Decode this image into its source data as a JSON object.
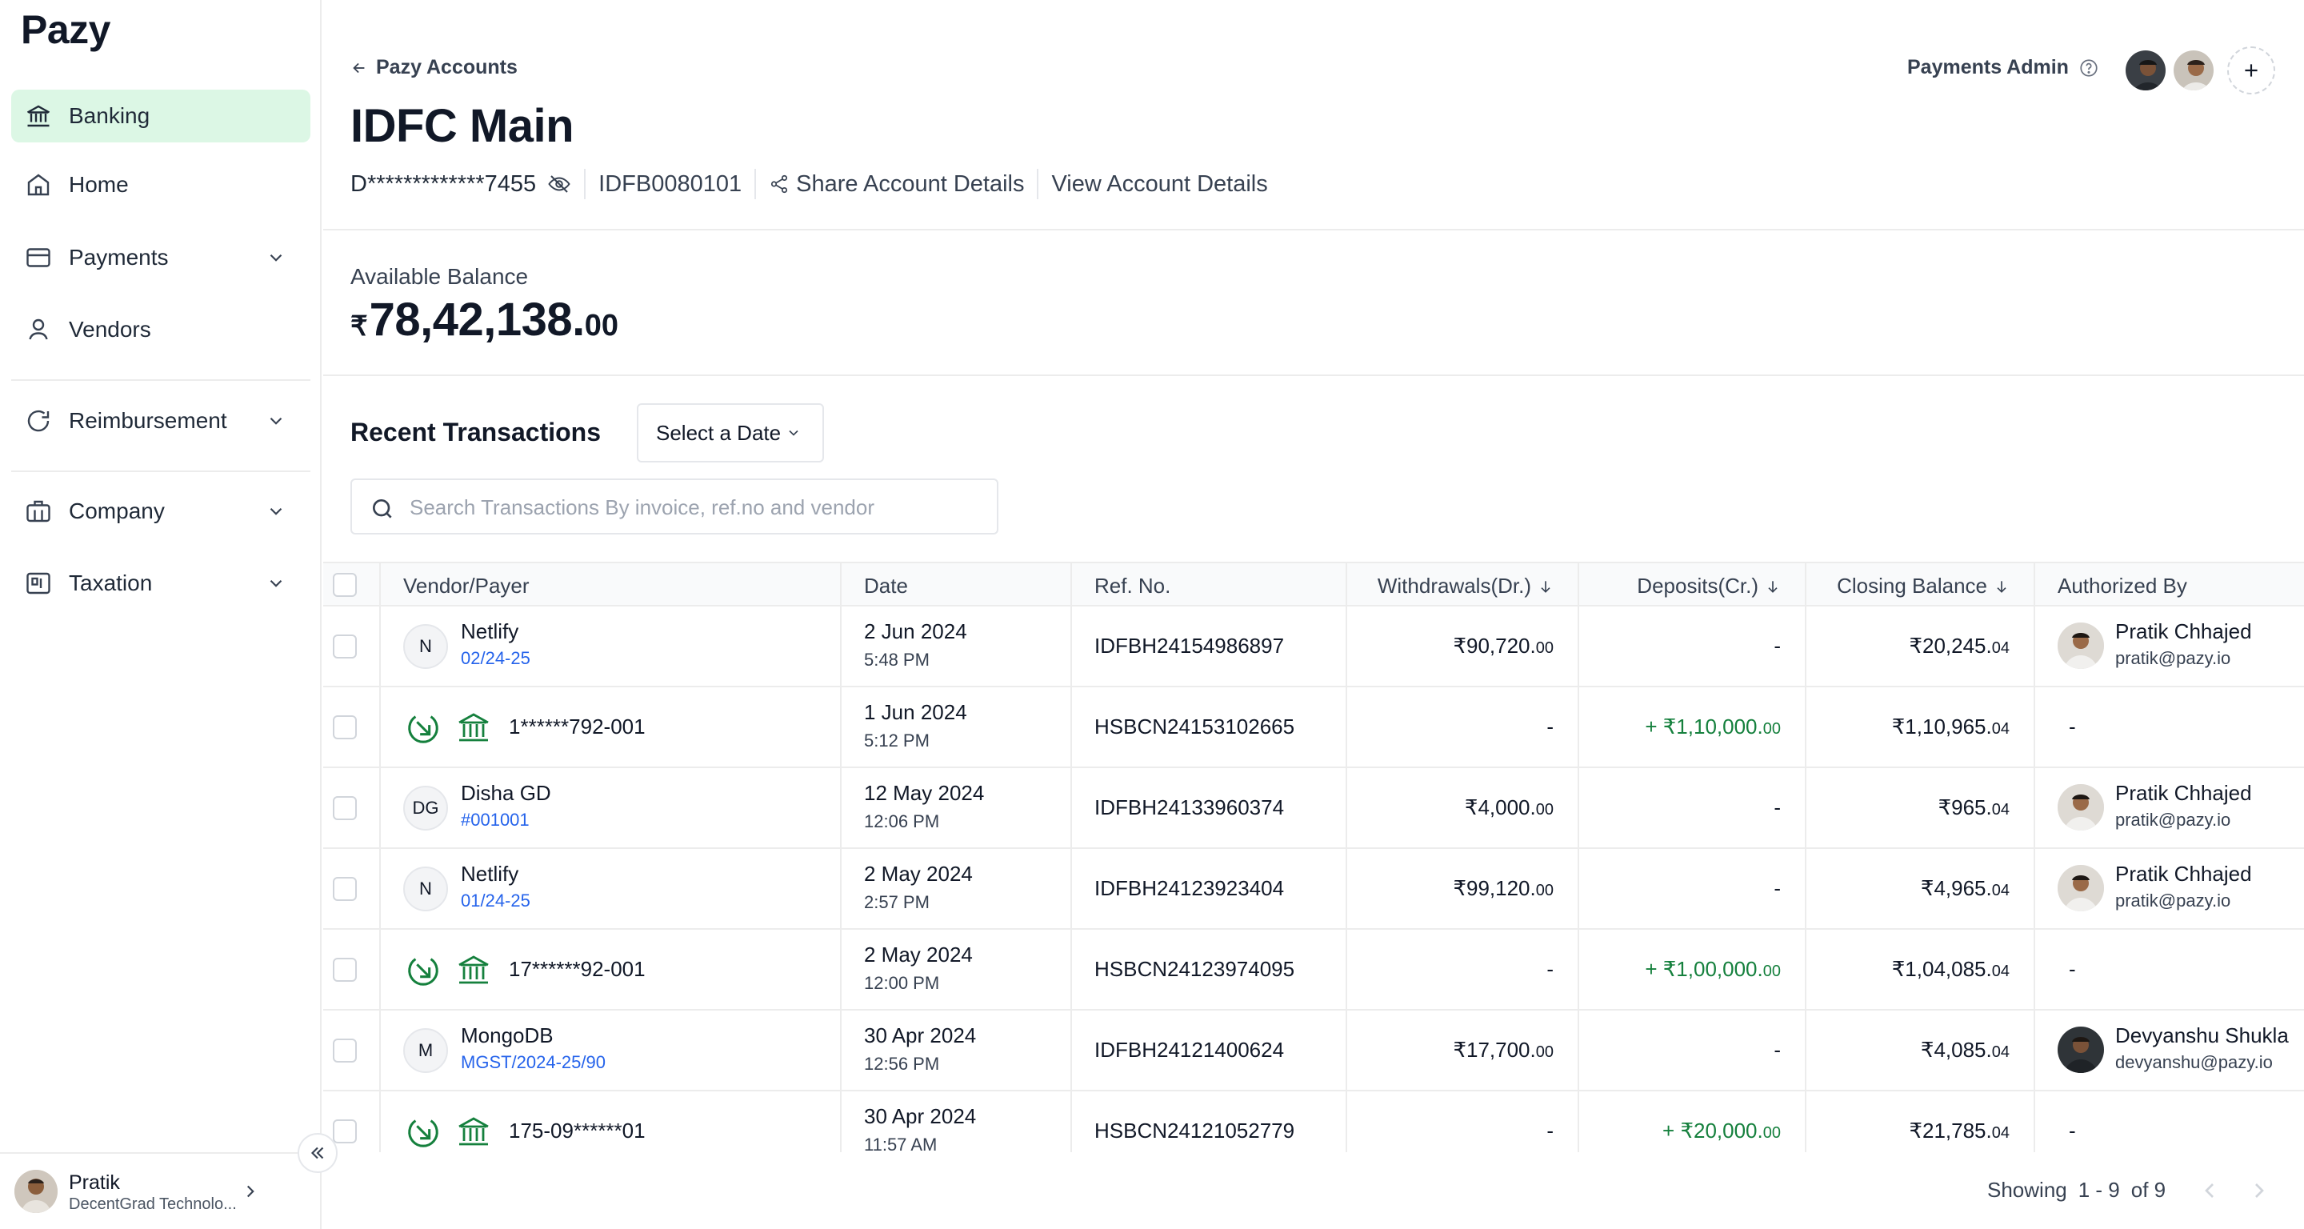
{
  "sidebar": {
    "logo": "Pazy",
    "items": [
      {
        "label": "Banking",
        "icon": "bank-icon",
        "active": true
      },
      {
        "label": "Home",
        "icon": "home-icon"
      },
      {
        "label": "Payments",
        "icon": "card-icon",
        "expandable": true
      },
      {
        "label": "Vendors",
        "icon": "user-icon"
      },
      {
        "label": "Reimbursement",
        "icon": "refresh-icon",
        "expandable": true
      },
      {
        "label": "Company",
        "icon": "briefcase-icon",
        "expandable": true
      },
      {
        "label": "Taxation",
        "icon": "taxation-icon",
        "expandable": true
      }
    ],
    "user": {
      "name": "Pratik",
      "company": "DecentGrad Technolo..."
    }
  },
  "header": {
    "back_label": "Pazy Accounts",
    "title": "IDFC Main",
    "account_number": "D*************7455",
    "ifsc": "IDFB0080101",
    "share_label": "Share Account Details",
    "view_label": "View Account Details",
    "role": "Payments Admin"
  },
  "balance": {
    "label": "Available Balance",
    "currency": "₹",
    "main": "78,42,138.",
    "decimals": "00"
  },
  "transactions": {
    "title": "Recent Transactions",
    "date_select": "Select a Date",
    "search_placeholder": "Search Transactions By invoice, ref.no and vendor",
    "columns": [
      "Vendor/Payer",
      "Date",
      "Ref. No.",
      "Withdrawals(Dr.)",
      "Deposits(Cr.)",
      "Closing Balance",
      "Authorized By"
    ],
    "rows": [
      {
        "type": "vendor",
        "initials": "N",
        "vendor": "Netlify",
        "sub": "02/24-25",
        "date": "2 Jun 2024",
        "time": "5:48 PM",
        "ref": "IDFBH24154986897",
        "withdrawal": "₹90,720.",
        "withdrawal_dec": "00",
        "deposit": "-",
        "deposit_dec": "",
        "closing": "₹20,245.",
        "closing_dec": "04",
        "auth_name": "Pratik Chhajed",
        "auth_email": "pratik@pazy.io"
      },
      {
        "type": "deposit",
        "account": "1******792-001",
        "date": "1 Jun 2024",
        "time": "5:12 PM",
        "ref": "HSBCN24153102665",
        "withdrawal": "-",
        "withdrawal_dec": "",
        "deposit": "+ ₹1,10,000.",
        "deposit_dec": "00",
        "closing": "₹1,10,965.",
        "closing_dec": "04",
        "auth_dash": "-"
      },
      {
        "type": "vendor",
        "initials": "DG",
        "vendor": "Disha GD",
        "sub": "#001001",
        "date": "12 May 2024",
        "time": "12:06 PM",
        "ref": "IDFBH24133960374",
        "withdrawal": "₹4,000.",
        "withdrawal_dec": "00",
        "deposit": "-",
        "deposit_dec": "",
        "closing": "₹965.",
        "closing_dec": "04",
        "auth_name": "Pratik Chhajed",
        "auth_email": "pratik@pazy.io"
      },
      {
        "type": "vendor",
        "initials": "N",
        "vendor": "Netlify",
        "sub": "01/24-25",
        "date": "2 May 2024",
        "time": "2:57 PM",
        "ref": "IDFBH24123923404",
        "withdrawal": "₹99,120.",
        "withdrawal_dec": "00",
        "deposit": "-",
        "deposit_dec": "",
        "closing": "₹4,965.",
        "closing_dec": "04",
        "auth_name": "Pratik Chhajed",
        "auth_email": "pratik@pazy.io"
      },
      {
        "type": "deposit",
        "account": "17******92-001",
        "date": "2 May 2024",
        "time": "12:00 PM",
        "ref": "HSBCN24123974095",
        "withdrawal": "-",
        "withdrawal_dec": "",
        "deposit": "+ ₹1,00,000.",
        "deposit_dec": "00",
        "closing": "₹1,04,085.",
        "closing_dec": "04",
        "auth_dash": "-"
      },
      {
        "type": "vendor",
        "initials": "M",
        "vendor": "MongoDB",
        "sub": "MGST/2024-25/90",
        "date": "30 Apr 2024",
        "time": "12:56 PM",
        "ref": "IDFBH24121400624",
        "withdrawal": "₹17,700.",
        "withdrawal_dec": "00",
        "deposit": "-",
        "deposit_dec": "",
        "closing": "₹4,085.",
        "closing_dec": "04",
        "auth_name": "Devyanshu Shukla",
        "auth_email": "devyanshu@pazy.io",
        "auth_dark": true
      },
      {
        "type": "deposit",
        "account": "175-09******01",
        "date": "30 Apr 2024",
        "time": "11:57 AM",
        "ref": "HSBCN24121052779",
        "withdrawal": "-",
        "withdrawal_dec": "",
        "deposit": "+ ₹20,000.",
        "deposit_dec": "00",
        "closing": "₹21,785.",
        "closing_dec": "04",
        "auth_dash": "-"
      }
    ]
  },
  "pagination": {
    "showing": "Showing",
    "range": "1 - 9",
    "of": "of 9"
  },
  "colors": {
    "accent_bg": "#dcf7e5",
    "deposit_green": "#15803d",
    "link_blue": "#2563eb"
  }
}
